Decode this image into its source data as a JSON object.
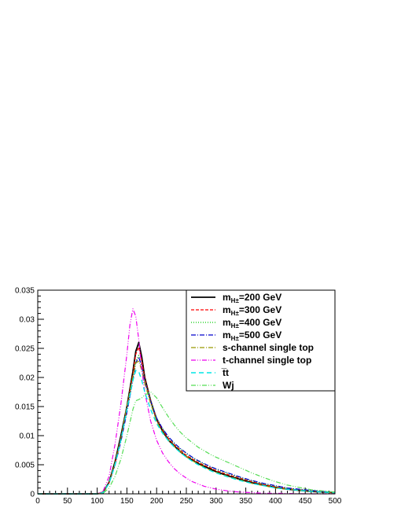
{
  "chart_data": {
    "type": "line",
    "title": "",
    "xlabel": "",
    "ylabel": "",
    "xlim": [
      0,
      500
    ],
    "ylim": [
      0,
      0.035
    ],
    "x_ticks": [
      {
        "value": 0,
        "label": "0"
      },
      {
        "value": 50,
        "label": "50"
      },
      {
        "value": 100,
        "label": "100"
      },
      {
        "value": 150,
        "label": "150"
      },
      {
        "value": 200,
        "label": "200"
      },
      {
        "value": 250,
        "label": "250"
      },
      {
        "value": 300,
        "label": "300"
      },
      {
        "value": 350,
        "label": "350"
      },
      {
        "value": 400,
        "label": "400"
      },
      {
        "value": 450,
        "label": "450"
      },
      {
        "value": 500,
        "label": "500"
      }
    ],
    "y_ticks": [
      {
        "value": 0,
        "label": "0"
      },
      {
        "value": 0.005,
        "label": "0.005"
      },
      {
        "value": 0.01,
        "label": "0.01"
      },
      {
        "value": 0.015,
        "label": "0.015"
      },
      {
        "value": 0.02,
        "label": "0.02"
      },
      {
        "value": 0.025,
        "label": "0.025"
      },
      {
        "value": 0.03,
        "label": "0.03"
      },
      {
        "value": 0.035,
        "label": "0.035"
      }
    ],
    "grid": false,
    "legend_position": "top-right",
    "series": [
      {
        "name": "m_{H^{±}}=200 GeV",
        "legend_main": "m",
        "legend_sub": "H±",
        "legend_rest": "=200 GeV",
        "color": "#000000",
        "dash": "none",
        "width": 1.8,
        "x": [
          0,
          100,
          110,
          120,
          130,
          140,
          150,
          160,
          165,
          170,
          175,
          180,
          190,
          200,
          210,
          220,
          230,
          240,
          250,
          260,
          270,
          280,
          290,
          300,
          320,
          340,
          360,
          380,
          400,
          420,
          440,
          460,
          480,
          500
        ],
        "y": [
          0,
          0,
          0.0002,
          0.002,
          0.0055,
          0.01,
          0.015,
          0.021,
          0.0245,
          0.026,
          0.0235,
          0.02,
          0.016,
          0.0128,
          0.0108,
          0.0092,
          0.0082,
          0.0072,
          0.0064,
          0.0058,
          0.0052,
          0.0047,
          0.0043,
          0.0038,
          0.0031,
          0.0025,
          0.0019,
          0.0015,
          0.0011,
          0.0008,
          0.0006,
          0.0004,
          0.0003,
          0.0002
        ]
      },
      {
        "name": "m_{H^{±}}=300 GeV",
        "legend_main": "m",
        "legend_sub": "H±",
        "legend_rest": "=300 GeV",
        "color": "#ff0000",
        "dash": "4,2",
        "width": 1.2,
        "x": [
          0,
          100,
          110,
          120,
          130,
          140,
          150,
          160,
          165,
          170,
          175,
          180,
          190,
          200,
          210,
          220,
          230,
          240,
          250,
          260,
          270,
          280,
          290,
          300,
          320,
          340,
          360,
          380,
          400,
          420,
          440,
          460,
          480,
          500
        ],
        "y": [
          0,
          0,
          0.0002,
          0.0019,
          0.0052,
          0.0095,
          0.0148,
          0.0205,
          0.024,
          0.0252,
          0.0228,
          0.0198,
          0.016,
          0.0129,
          0.011,
          0.0095,
          0.0084,
          0.0075,
          0.0066,
          0.006,
          0.0054,
          0.0049,
          0.0045,
          0.004,
          0.0033,
          0.0027,
          0.0021,
          0.0016,
          0.0012,
          0.0009,
          0.0007,
          0.0005,
          0.0003,
          0.0002
        ]
      },
      {
        "name": "m_{H^{±}}=400 GeV",
        "legend_main": "m",
        "legend_sub": "H±",
        "legend_rest": "=400 GeV",
        "color": "#00cc00",
        "dash": "1,2",
        "width": 1.2,
        "x": [
          0,
          100,
          110,
          120,
          130,
          140,
          150,
          160,
          165,
          170,
          175,
          180,
          190,
          200,
          210,
          220,
          230,
          240,
          250,
          260,
          270,
          280,
          290,
          300,
          320,
          340,
          360,
          380,
          400,
          420,
          440,
          460,
          480,
          500
        ],
        "y": [
          0,
          0,
          0.0002,
          0.0018,
          0.005,
          0.0092,
          0.0142,
          0.0198,
          0.0228,
          0.0238,
          0.022,
          0.0195,
          0.016,
          0.0131,
          0.0112,
          0.0097,
          0.0086,
          0.0077,
          0.0069,
          0.0062,
          0.0056,
          0.0051,
          0.0047,
          0.0042,
          0.0035,
          0.0028,
          0.0022,
          0.0017,
          0.0013,
          0.001,
          0.0007,
          0.0005,
          0.0004,
          0.0003
        ]
      },
      {
        "name": "m_{H^{±}}=500 GeV",
        "legend_main": "m",
        "legend_sub": "H±",
        "legend_rest": "=500 GeV",
        "color": "#0000cc",
        "dash": "6,2,1,2",
        "width": 1.2,
        "x": [
          0,
          100,
          110,
          120,
          130,
          140,
          150,
          160,
          165,
          170,
          175,
          180,
          190,
          200,
          210,
          220,
          230,
          240,
          250,
          260,
          270,
          280,
          290,
          300,
          320,
          340,
          360,
          380,
          400,
          420,
          440,
          460,
          480,
          500
        ],
        "y": [
          0,
          0,
          0.0002,
          0.0018,
          0.0049,
          0.009,
          0.014,
          0.0195,
          0.0225,
          0.0235,
          0.0218,
          0.0193,
          0.0159,
          0.013,
          0.0112,
          0.0098,
          0.0087,
          0.0078,
          0.007,
          0.0063,
          0.0057,
          0.0052,
          0.0047,
          0.0043,
          0.0036,
          0.0029,
          0.0023,
          0.0018,
          0.0014,
          0.001,
          0.0008,
          0.0006,
          0.0004,
          0.0003
        ]
      },
      {
        "name": "s-channel single top",
        "legend_main": "s-channel single top",
        "legend_sub": "",
        "legend_rest": "",
        "color": "#999900",
        "dash": "6,2,1,2",
        "width": 1.2,
        "x": [
          0,
          100,
          110,
          120,
          130,
          140,
          150,
          160,
          165,
          170,
          175,
          180,
          190,
          200,
          210,
          220,
          230,
          240,
          250,
          260,
          270,
          280,
          290,
          300,
          320,
          340,
          360,
          380,
          400,
          420,
          440,
          460,
          480,
          500
        ],
        "y": [
          0,
          0,
          0.0002,
          0.0019,
          0.0053,
          0.0096,
          0.015,
          0.0202,
          0.0225,
          0.0228,
          0.0212,
          0.019,
          0.0155,
          0.0125,
          0.0106,
          0.0092,
          0.0081,
          0.0072,
          0.0064,
          0.0057,
          0.0051,
          0.0046,
          0.0041,
          0.0037,
          0.003,
          0.0024,
          0.0018,
          0.0014,
          0.001,
          0.0008,
          0.0006,
          0.0004,
          0.0003,
          0.0002
        ]
      },
      {
        "name": "t-channel single top",
        "legend_main": "t-channel single top",
        "legend_sub": "",
        "legend_rest": "",
        "color": "#ee00ee",
        "dash": "6,2,1,2,1,2",
        "width": 1.2,
        "x": [
          0,
          100,
          110,
          120,
          130,
          140,
          150,
          155,
          160,
          165,
          170,
          175,
          180,
          190,
          200,
          210,
          220,
          230,
          240,
          250,
          260,
          270,
          280,
          300,
          320,
          340,
          360,
          380,
          400,
          450,
          500
        ],
        "y": [
          0,
          0,
          0.0005,
          0.003,
          0.0085,
          0.0155,
          0.024,
          0.029,
          0.0318,
          0.0305,
          0.0265,
          0.0215,
          0.0175,
          0.0125,
          0.0092,
          0.007,
          0.0055,
          0.0043,
          0.0034,
          0.0027,
          0.0021,
          0.0017,
          0.0013,
          0.0008,
          0.0005,
          0.0003,
          0.0002,
          0.0001,
          0.0001,
          0.0,
          0.0
        ]
      },
      {
        "name": "t̅t",
        "legend_main": "t̅t",
        "legend_sub": "",
        "legend_rest": "",
        "color": "#00e5e5",
        "dash": "6,4",
        "width": 1.4,
        "x": [
          0,
          100,
          110,
          120,
          130,
          140,
          150,
          160,
          165,
          170,
          175,
          180,
          190,
          200,
          210,
          220,
          230,
          240,
          250,
          260,
          270,
          280,
          290,
          300,
          320,
          340,
          360,
          380,
          400,
          420,
          440,
          460,
          480,
          500
        ],
        "y": [
          0,
          0,
          0.0002,
          0.0018,
          0.005,
          0.0093,
          0.0145,
          0.0195,
          0.0212,
          0.021,
          0.0195,
          0.0175,
          0.0145,
          0.0121,
          0.0104,
          0.0091,
          0.008,
          0.0071,
          0.0063,
          0.0056,
          0.005,
          0.0045,
          0.004,
          0.0036,
          0.0029,
          0.0023,
          0.0018,
          0.0014,
          0.001,
          0.0008,
          0.0006,
          0.0004,
          0.0003,
          0.0002
        ]
      },
      {
        "name": "Wj",
        "legend_main": "Wj",
        "legend_sub": "",
        "legend_rest": "",
        "color": "#55dd55",
        "dash": "6,2,1,2,1,2",
        "width": 1.2,
        "x": [
          0,
          100,
          110,
          120,
          130,
          140,
          150,
          160,
          165,
          170,
          175,
          180,
          190,
          200,
          210,
          220,
          230,
          240,
          250,
          260,
          270,
          280,
          290,
          300,
          320,
          340,
          360,
          380,
          400,
          420,
          440,
          460,
          480,
          500
        ],
        "y": [
          0,
          0,
          0.0001,
          0.001,
          0.003,
          0.006,
          0.01,
          0.0145,
          0.016,
          0.0162,
          0.0165,
          0.017,
          0.0175,
          0.0165,
          0.0148,
          0.0132,
          0.0118,
          0.0106,
          0.0096,
          0.0088,
          0.008,
          0.0074,
          0.0068,
          0.0063,
          0.0054,
          0.0045,
          0.0036,
          0.0028,
          0.0021,
          0.0015,
          0.0011,
          0.0007,
          0.0005,
          0.0003
        ]
      }
    ]
  }
}
